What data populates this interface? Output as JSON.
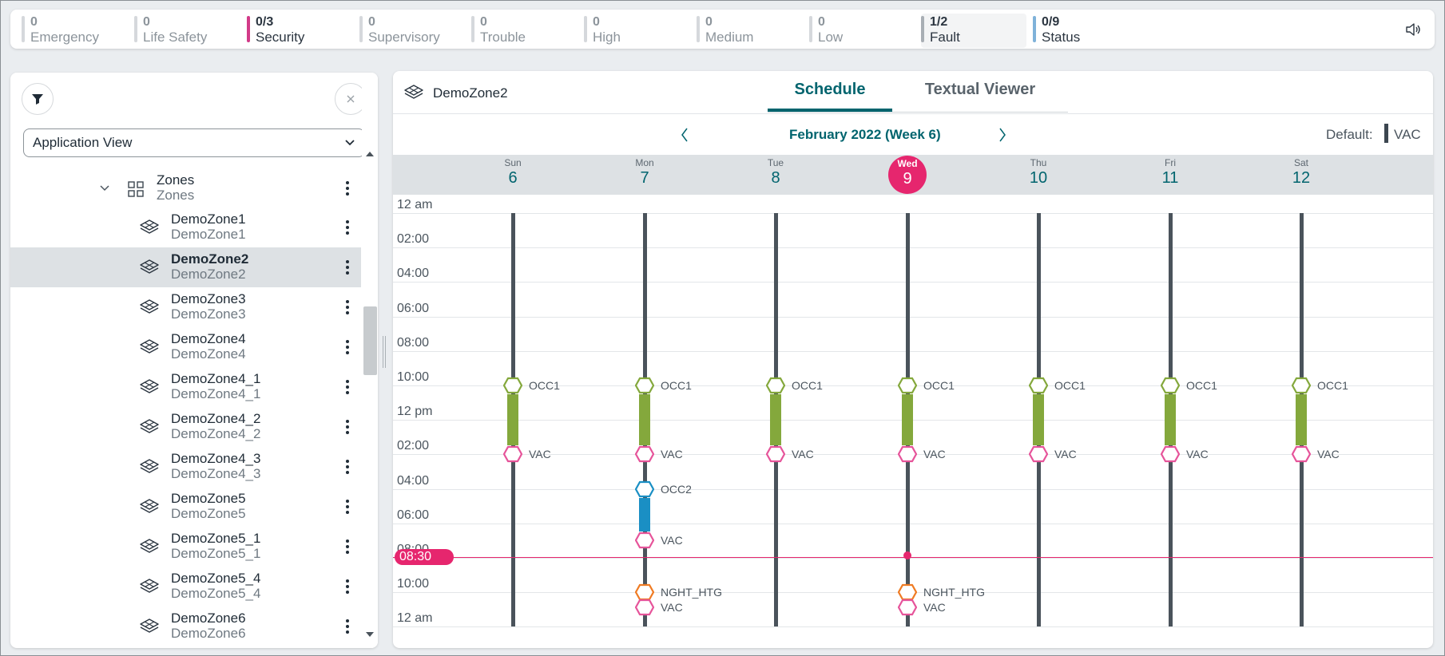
{
  "statusbar": {
    "items": [
      {
        "count": "0",
        "label": "Emergency",
        "bar_color": "#d5d8dc",
        "active": false
      },
      {
        "count": "0",
        "label": "Life Safety",
        "bar_color": "#d5d8dc",
        "active": false
      },
      {
        "count": "0/3",
        "label": "Security",
        "bar_color": "#d23a88",
        "active": true
      },
      {
        "count": "0",
        "label": "Supervisory",
        "bar_color": "#d5d8dc",
        "active": false
      },
      {
        "count": "0",
        "label": "Trouble",
        "bar_color": "#d5d8dc",
        "active": false
      },
      {
        "count": "0",
        "label": "High",
        "bar_color": "#d5d8dc",
        "active": false
      },
      {
        "count": "0",
        "label": "Medium",
        "bar_color": "#d5d8dc",
        "active": false
      },
      {
        "count": "0",
        "label": "Low",
        "bar_color": "#d5d8dc",
        "active": false
      },
      {
        "count": "1/2",
        "label": "Fault",
        "bar_color": "#a8aeb4",
        "active": true
      },
      {
        "count": "0/9",
        "label": "Status",
        "bar_color": "#7fb2d9",
        "active": true
      }
    ],
    "sound_icon": "speaker-icon"
  },
  "left_panel": {
    "filter_icon": "filter-icon",
    "close_icon": "close-icon",
    "view_select": {
      "value": "Application View"
    },
    "tree": {
      "zones": {
        "title": "Zones",
        "subtitle": "Zones"
      },
      "items": [
        {
          "title": "DemoZone1",
          "subtitle": "DemoZone1",
          "selected": false
        },
        {
          "title": "DemoZone2",
          "subtitle": "DemoZone2",
          "selected": true
        },
        {
          "title": "DemoZone3",
          "subtitle": "DemoZone3",
          "selected": false
        },
        {
          "title": "DemoZone4",
          "subtitle": "DemoZone4",
          "selected": false
        },
        {
          "title": "DemoZone4_1",
          "subtitle": "DemoZone4_1",
          "selected": false
        },
        {
          "title": "DemoZone4_2",
          "subtitle": "DemoZone4_2",
          "selected": false
        },
        {
          "title": "DemoZone4_3",
          "subtitle": "DemoZone4_3",
          "selected": false
        },
        {
          "title": "DemoZone5",
          "subtitle": "DemoZone5",
          "selected": false
        },
        {
          "title": "DemoZone5_1",
          "subtitle": "DemoZone5_1",
          "selected": false
        },
        {
          "title": "DemoZone5_4",
          "subtitle": "DemoZone5_4",
          "selected": false
        },
        {
          "title": "DemoZone6",
          "subtitle": "DemoZone6",
          "selected": false
        }
      ]
    }
  },
  "right_panel": {
    "title": "DemoZone2",
    "tabs": [
      {
        "label": "Schedule",
        "active": true
      },
      {
        "label": "Textual Viewer",
        "active": false
      }
    ],
    "week_title": "February 2022 (Week 6)",
    "default_label": "Default:",
    "default_value": "VAC",
    "days": [
      {
        "name": "Sun",
        "date": "6",
        "today": false
      },
      {
        "name": "Mon",
        "date": "7",
        "today": false
      },
      {
        "name": "Tue",
        "date": "8",
        "today": false
      },
      {
        "name": "Wed",
        "date": "9",
        "today": true
      },
      {
        "name": "Thu",
        "date": "10",
        "today": false
      },
      {
        "name": "Fri",
        "date": "11",
        "today": false
      },
      {
        "name": "Sat",
        "date": "12",
        "today": false
      }
    ],
    "time_labels": [
      "12 am",
      "02:00",
      "04:00",
      "06:00",
      "08:00",
      "10:00",
      "12 pm",
      "02:00",
      "04:00",
      "06:00",
      "08:00",
      "10:00",
      "12 am"
    ],
    "current_time": "08:30",
    "colors": {
      "occ1": "#84a83c",
      "occ2": "#1a8fc4",
      "vac": "#e6549a",
      "nght_htg": "#ef7b23",
      "now": "#e6266e",
      "accent": "#00646e"
    },
    "events": [
      {
        "day": 0,
        "start": 10,
        "end": 14,
        "start_label": "OCC1",
        "end_label": "VAC",
        "type": "occ1"
      },
      {
        "day": 1,
        "start": 10,
        "end": 14,
        "start_label": "OCC1",
        "end_label": "VAC",
        "type": "occ1"
      },
      {
        "day": 1,
        "start": 16,
        "end": 19,
        "start_label": "OCC2",
        "end_label": "VAC",
        "type": "occ2"
      },
      {
        "day": 1,
        "start": 22,
        "end": 23,
        "start_label": "NGHT_HTG",
        "end_label": "VAC",
        "type": "nght_htg"
      },
      {
        "day": 2,
        "start": 10,
        "end": 14,
        "start_label": "OCC1",
        "end_label": "VAC",
        "type": "occ1"
      },
      {
        "day": 3,
        "start": 10,
        "end": 14,
        "start_label": "OCC1",
        "end_label": "VAC",
        "type": "occ1"
      },
      {
        "day": 3,
        "start": 22,
        "end": 23,
        "start_label": "NGHT_HTG",
        "end_label": "VAC",
        "type": "nght_htg"
      },
      {
        "day": 4,
        "start": 10,
        "end": 14,
        "start_label": "OCC1",
        "end_label": "VAC",
        "type": "occ1"
      },
      {
        "day": 5,
        "start": 10,
        "end": 14,
        "start_label": "OCC1",
        "end_label": "VAC",
        "type": "occ1"
      },
      {
        "day": 6,
        "start": 10,
        "end": 14,
        "start_label": "OCC1",
        "end_label": "VAC",
        "type": "occ1"
      }
    ]
  }
}
